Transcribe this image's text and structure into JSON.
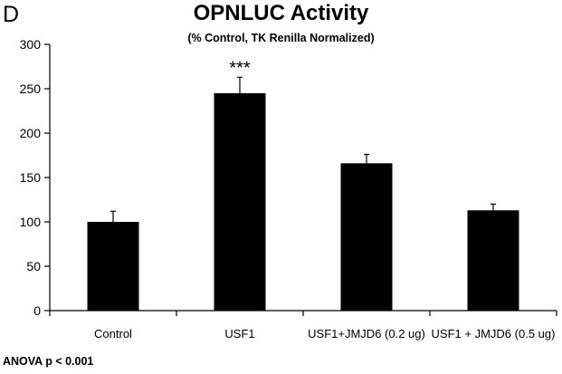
{
  "panel_label": "D",
  "footnote": "ANOVA p < 0.001",
  "colors": {
    "bar": "#000000",
    "axis": "#000000"
  },
  "chart_data": {
    "type": "bar",
    "title": "OPNLUC Activity",
    "subtitle": "(% Control, TK Renilla Normalized)",
    "xlabel": "",
    "ylabel": "",
    "categories": [
      "Control",
      "USF1",
      "USF1+JMJD6 (0.2 ug)",
      "USF1 + JMJD6 (0.5 ug)"
    ],
    "values": [
      100,
      245,
      166,
      113
    ],
    "error_upper": [
      12,
      18,
      10,
      7
    ],
    "annotations": [
      "",
      "***",
      "",
      ""
    ],
    "ylim": [
      0,
      300
    ],
    "yticks": [
      0,
      50,
      100,
      150,
      200,
      250,
      300
    ],
    "grid": false,
    "legend": "none"
  }
}
